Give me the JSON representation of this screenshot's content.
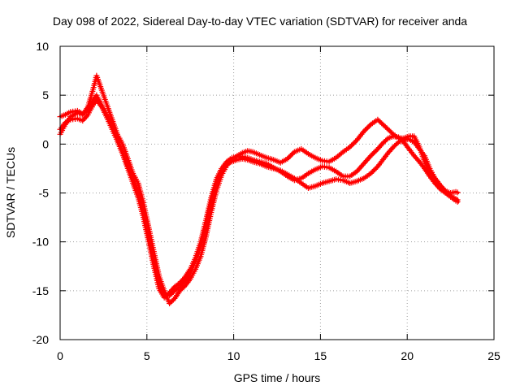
{
  "chart_data": {
    "type": "line",
    "title": "Day 098 of 2022, Sidereal Day-to-day VTEC variation (SDTVAR) for receiver anda",
    "xlabel": "GPS time / hours",
    "ylabel": "SDTVAR / TECUs",
    "xlim": [
      0,
      25
    ],
    "ylim": [
      -20,
      10
    ],
    "xticks": [
      0,
      5,
      10,
      15,
      20,
      25
    ],
    "yticks": [
      10,
      5,
      0,
      -5,
      -10,
      -15,
      -20
    ],
    "xtick_labels": [
      "0",
      "5",
      "10",
      "15",
      "20",
      "25"
    ],
    "ytick_labels": [
      "10",
      "5",
      "0",
      "-5",
      "-10",
      "-15",
      "-20"
    ],
    "grid": true,
    "legend": "none",
    "series_color": "#ff0000",
    "series": [
      {
        "name": "track-1",
        "x": [
          0.0,
          0.3,
          0.6,
          1.0,
          1.3,
          1.6,
          1.9,
          2.1,
          2.4,
          2.7,
          3.0,
          3.3,
          3.6,
          3.9,
          4.2,
          4.5,
          4.8,
          5.1,
          5.4,
          5.7,
          6.0,
          6.3,
          6.6,
          6.9,
          7.2,
          7.5,
          7.8,
          8.1,
          8.4,
          8.7,
          9.0,
          9.3,
          9.6,
          9.9,
          10.2,
          10.5,
          10.8,
          11.1,
          11.5,
          11.9,
          12.3,
          12.7,
          13.1,
          13.5,
          13.9,
          14.3,
          14.7,
          15.1,
          15.5,
          15.9,
          16.3,
          16.7,
          17.1,
          17.5,
          17.9,
          18.3,
          18.6,
          18.9,
          19.2,
          19.5,
          19.8,
          20.1,
          20.4,
          20.7,
          21.0,
          21.3,
          21.6,
          21.9,
          22.2,
          22.5,
          22.8,
          23.0
        ],
        "y": [
          1.0,
          2.0,
          2.8,
          3.2,
          3.0,
          3.8,
          5.6,
          7.0,
          5.5,
          4.0,
          2.5,
          1.0,
          0.0,
          -1.5,
          -3.0,
          -4.0,
          -6.0,
          -8.5,
          -11.0,
          -13.5,
          -15.0,
          -16.3,
          -15.8,
          -15.0,
          -14.5,
          -13.8,
          -12.8,
          -11.5,
          -9.5,
          -7.0,
          -4.8,
          -3.2,
          -2.2,
          -1.6,
          -1.2,
          -0.9,
          -0.7,
          -0.8,
          -1.1,
          -1.4,
          -1.6,
          -1.9,
          -1.5,
          -0.8,
          -0.5,
          -1.0,
          -1.4,
          -1.7,
          -1.8,
          -1.4,
          -0.8,
          -0.3,
          0.4,
          1.3,
          2.0,
          2.5,
          2.0,
          1.5,
          1.0,
          0.6,
          0.6,
          0.8,
          0.8,
          -0.3,
          -1.8,
          -2.8,
          -3.5,
          -4.3,
          -4.8,
          -5.0,
          -4.9,
          -5.0
        ]
      },
      {
        "name": "track-2",
        "x": [
          0.0,
          0.3,
          0.6,
          1.0,
          1.3,
          1.6,
          1.9,
          2.1,
          2.4,
          2.7,
          3.0,
          3.3,
          3.6,
          3.9,
          4.2,
          4.5,
          4.8,
          5.1,
          5.4,
          5.7,
          6.0,
          6.3,
          6.6,
          6.9,
          7.2,
          7.5,
          7.8,
          8.1,
          8.4,
          8.7,
          9.0,
          9.3,
          9.6,
          9.9,
          10.2,
          10.5,
          10.8,
          11.1,
          11.5,
          11.9,
          12.3,
          12.7,
          13.1,
          13.5,
          13.9,
          14.3,
          14.7,
          15.1,
          15.5,
          15.9,
          16.3,
          16.7,
          17.1,
          17.5,
          17.9,
          18.3,
          18.6,
          18.9,
          19.2,
          19.5,
          19.8,
          20.1,
          20.4,
          20.7,
          21.0,
          21.3,
          21.6,
          21.9,
          22.2,
          22.5,
          22.8,
          23.0
        ],
        "y": [
          2.8,
          3.0,
          3.3,
          3.4,
          3.1,
          3.5,
          4.5,
          5.0,
          4.0,
          3.0,
          2.0,
          0.5,
          -0.8,
          -2.2,
          -3.5,
          -4.8,
          -6.8,
          -9.3,
          -11.8,
          -14.2,
          -15.3,
          -15.5,
          -15.0,
          -14.6,
          -14.0,
          -13.2,
          -12.0,
          -10.5,
          -8.5,
          -6.0,
          -4.0,
          -2.8,
          -2.0,
          -1.8,
          -1.6,
          -1.5,
          -1.6,
          -1.8,
          -2.0,
          -2.3,
          -2.5,
          -2.7,
          -3.1,
          -3.5,
          -4.0,
          -4.5,
          -4.3,
          -4.0,
          -3.8,
          -3.6,
          -3.7,
          -4.0,
          -3.8,
          -3.5,
          -3.0,
          -2.3,
          -1.6,
          -0.9,
          -0.3,
          0.2,
          0.4,
          0.5,
          0.2,
          -0.5,
          -1.2,
          -2.5,
          -3.5,
          -4.2,
          -4.8,
          -5.3,
          -5.6,
          -5.8
        ]
      },
      {
        "name": "track-3",
        "x": [
          0.0,
          0.3,
          0.6,
          1.0,
          1.3,
          1.6,
          1.9,
          2.1,
          2.4,
          2.7,
          3.0,
          3.3,
          3.6,
          3.9,
          4.2,
          4.5,
          4.8,
          5.1,
          5.4,
          5.7,
          6.0,
          6.3,
          6.6,
          6.9,
          7.2,
          7.5,
          7.8,
          8.1,
          8.4,
          8.7,
          9.0,
          9.3,
          9.6,
          9.9,
          10.2,
          10.5,
          10.8,
          11.1,
          11.5,
          11.9,
          12.3,
          12.7,
          13.1,
          13.5,
          13.9,
          14.3,
          14.7,
          15.1,
          15.5,
          15.9,
          16.3,
          16.7,
          17.1,
          17.5,
          17.9,
          18.3,
          18.6,
          18.9,
          19.2,
          19.5,
          19.8,
          20.1,
          20.4,
          20.7,
          21.0,
          21.3,
          21.6,
          21.9,
          22.2,
          22.5,
          22.8,
          23.0
        ],
        "y": [
          1.5,
          2.2,
          2.5,
          2.6,
          2.4,
          3.0,
          4.0,
          4.5,
          3.8,
          2.7,
          1.5,
          0.3,
          -1.0,
          -2.5,
          -4.0,
          -5.5,
          -7.5,
          -10.0,
          -12.5,
          -14.8,
          -15.7,
          -15.2,
          -14.6,
          -14.2,
          -13.6,
          -12.8,
          -11.6,
          -10.0,
          -7.8,
          -5.5,
          -3.6,
          -2.5,
          -1.8,
          -1.4,
          -1.3,
          -1.3,
          -1.4,
          -1.6,
          -1.8,
          -2.0,
          -2.4,
          -2.8,
          -3.3,
          -3.7,
          -3.5,
          -3.0,
          -2.6,
          -2.3,
          -2.4,
          -2.8,
          -3.3,
          -3.3,
          -2.8,
          -2.0,
          -1.2,
          -0.5,
          0.1,
          0.6,
          0.8,
          0.7,
          0.2,
          -0.5,
          -1.2,
          -1.8,
          -2.5,
          -3.3,
          -4.0,
          -4.6,
          -5.0,
          -5.4,
          -5.8,
          -6.0
        ]
      }
    ]
  }
}
